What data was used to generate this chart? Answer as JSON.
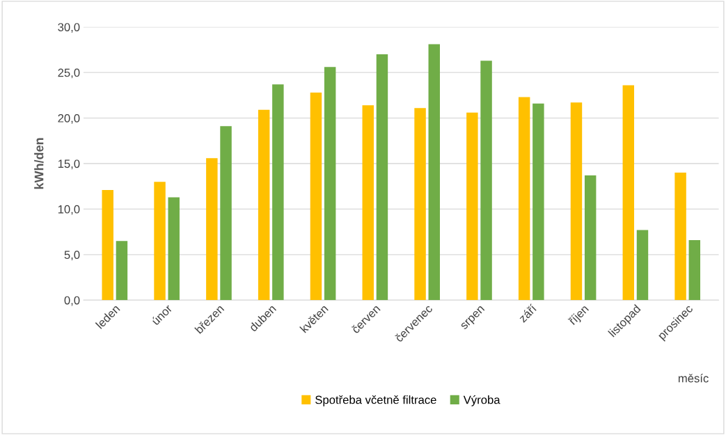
{
  "chart_data": {
    "type": "bar",
    "xlabel": "měsíc",
    "ylabel": "kWh/den",
    "categories": [
      "leden",
      "únor",
      "březen",
      "duben",
      "květen",
      "červen",
      "červenec",
      "srpen",
      "září",
      "říjen",
      "listopad",
      "prosinec"
    ],
    "series": [
      {
        "name": "Spotřeba včetně filtrace",
        "color": "#ffc000",
        "values": [
          12.1,
          13.0,
          15.6,
          20.9,
          22.8,
          21.4,
          21.1,
          20.6,
          22.3,
          21.7,
          23.6,
          14.0
        ]
      },
      {
        "name": "Výroba",
        "color": "#70ad47",
        "values": [
          6.5,
          11.3,
          19.1,
          23.7,
          25.6,
          27.0,
          28.1,
          26.3,
          21.6,
          13.7,
          7.7,
          6.6
        ]
      }
    ],
    "ylim": [
      0,
      30
    ],
    "yticks": [
      {
        "value": 0,
        "label": "0,0"
      },
      {
        "value": 5,
        "label": "5,0"
      },
      {
        "value": 10,
        "label": "10,0"
      },
      {
        "value": 15,
        "label": "15,0"
      },
      {
        "value": 20,
        "label": "20,0"
      },
      {
        "value": 25,
        "label": "25,0"
      },
      {
        "value": 30,
        "label": "30,0"
      }
    ],
    "grid": "y",
    "legend": "bottom"
  }
}
